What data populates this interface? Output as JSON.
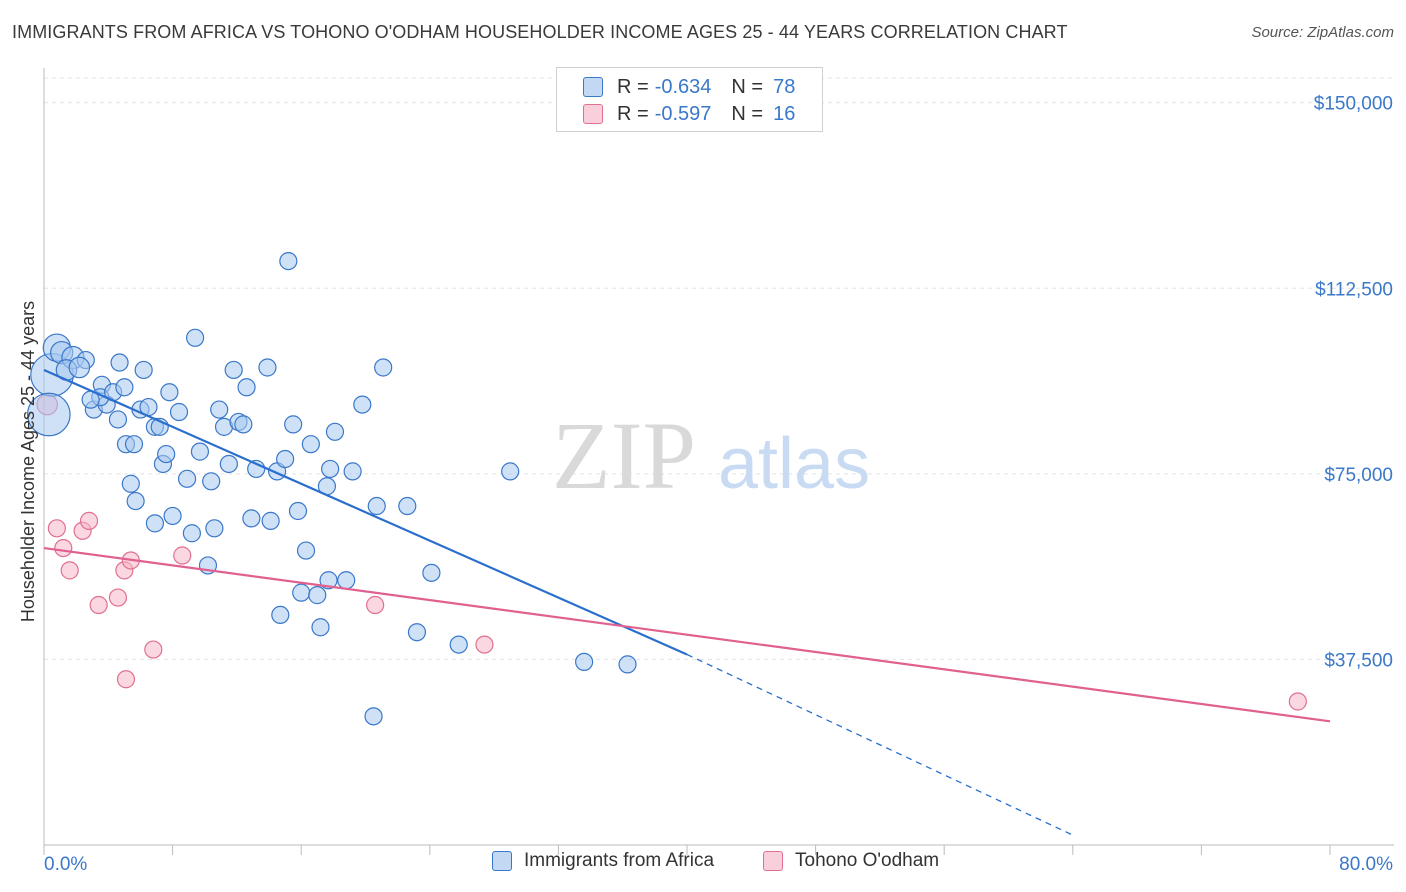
{
  "title": "IMMIGRANTS FROM AFRICA VS TOHONO O'ODHAM HOUSEHOLDER INCOME AGES 25 - 44 YEARS CORRELATION CHART",
  "source": "Source: ZipAtlas.com",
  "watermark": {
    "zip": "ZIP",
    "atlas": "atlas"
  },
  "colors": {
    "blue": "#3a78c9",
    "blue_fill": "#a8c8f0",
    "blue_line": "#2b6fce",
    "pink": "#e0708f",
    "pink_fill": "#f5b7c8",
    "pink_line": "#e0608f",
    "grid": "#e3e3e3",
    "axis_label": "#3a78c9"
  },
  "legend": {
    "rows": [
      {
        "r_label": "R = ",
        "r_value": "-0.634",
        "n_label": "N = ",
        "n_value": "78"
      },
      {
        "r_label": "R = ",
        "r_value": "-0.597",
        "n_label": "N = ",
        "n_value": "16"
      }
    ]
  },
  "bottom_legend": [
    "Immigrants from Africa",
    "Tohono O'odham"
  ],
  "chart_data": {
    "type": "scatter",
    "title": "IMMIGRANTS FROM AFRICA VS TOHONO O'ODHAM HOUSEHOLDER INCOME AGES 25 - 44 YEARS CORRELATION CHART",
    "xlabel": "",
    "ylabel": "Householder Income Ages 25 - 44 years",
    "xlim": [
      0,
      80
    ],
    "ylim": [
      0,
      155000
    ],
    "x_tick_labels": [
      "0.0%",
      "80.0%"
    ],
    "y_ticks": [
      37500,
      75000,
      112500,
      150000
    ],
    "y_tick_labels": [
      "$37,500",
      "$75,000",
      "$112,500",
      "$150,000"
    ],
    "series": [
      {
        "name": "Immigrants from Africa",
        "color": "blue",
        "points": [
          [
            0.5,
            95000,
            2.5
          ],
          [
            0.3,
            87000,
            2.5
          ],
          [
            0.8,
            100500,
            1.6
          ],
          [
            1.1,
            99500,
            1.3
          ],
          [
            1.8,
            98500,
            1.3
          ],
          [
            2.6,
            98000,
            1
          ],
          [
            3.6,
            93000,
            1
          ],
          [
            3.1,
            88000,
            1
          ],
          [
            3.9,
            89000,
            1
          ],
          [
            3.5,
            90500,
            1
          ],
          [
            4.3,
            91500,
            1
          ],
          [
            5.0,
            92500,
            1
          ],
          [
            4.6,
            86000,
            1
          ],
          [
            5.1,
            81000,
            1
          ],
          [
            5.6,
            81000,
            1
          ],
          [
            5.4,
            73000,
            1
          ],
          [
            5.7,
            69500,
            1
          ],
          [
            6.2,
            96000,
            1
          ],
          [
            6.0,
            88000,
            1
          ],
          [
            6.5,
            88500,
            1
          ],
          [
            6.9,
            84500,
            1
          ],
          [
            7.2,
            84500,
            1
          ],
          [
            7.4,
            77000,
            1
          ],
          [
            7.8,
            91500,
            1
          ],
          [
            8.0,
            66500,
            1
          ],
          [
            6.9,
            65000,
            1
          ],
          [
            8.4,
            87500,
            1
          ],
          [
            8.9,
            74000,
            1
          ],
          [
            9.2,
            63000,
            1
          ],
          [
            9.4,
            102500,
            1
          ],
          [
            9.7,
            79500,
            1
          ],
          [
            10.4,
            73500,
            1
          ],
          [
            10.2,
            56500,
            1
          ],
          [
            10.6,
            64000,
            1
          ],
          [
            10.9,
            88000,
            1
          ],
          [
            11.2,
            84500,
            1
          ],
          [
            11.5,
            77000,
            1
          ],
          [
            11.8,
            96000,
            1
          ],
          [
            12.1,
            85500,
            1
          ],
          [
            12.4,
            85000,
            1
          ],
          [
            12.6,
            92500,
            1
          ],
          [
            12.9,
            66000,
            1
          ],
          [
            13.2,
            76000,
            1
          ],
          [
            13.9,
            96500,
            1
          ],
          [
            14.1,
            65500,
            1
          ],
          [
            14.5,
            75500,
            1
          ],
          [
            15.0,
            78000,
            1
          ],
          [
            14.7,
            46500,
            1
          ],
          [
            15.2,
            118000,
            1
          ],
          [
            15.5,
            85000,
            1
          ],
          [
            15.8,
            67500,
            1
          ],
          [
            16.0,
            51000,
            1
          ],
          [
            16.3,
            59500,
            1
          ],
          [
            16.6,
            81000,
            1
          ],
          [
            17.0,
            50500,
            1
          ],
          [
            17.2,
            44000,
            1
          ],
          [
            17.6,
            72500,
            1
          ],
          [
            17.8,
            76000,
            1
          ],
          [
            17.7,
            53500,
            1
          ],
          [
            18.1,
            83500,
            1
          ],
          [
            18.8,
            53500,
            1
          ],
          [
            19.2,
            75500,
            1
          ],
          [
            19.8,
            89000,
            1
          ],
          [
            20.7,
            68500,
            1
          ],
          [
            21.1,
            96500,
            1
          ],
          [
            22.6,
            68500,
            1
          ],
          [
            23.2,
            43000,
            1
          ],
          [
            24.1,
            55000,
            1
          ],
          [
            25.8,
            40500,
            1
          ],
          [
            29.0,
            75500,
            1
          ],
          [
            33.6,
            37000,
            1
          ],
          [
            36.3,
            36500,
            1
          ],
          [
            20.5,
            26000,
            1
          ],
          [
            1.4,
            96000,
            1.2
          ],
          [
            2.2,
            96500,
            1.2
          ],
          [
            2.9,
            90000,
            1
          ],
          [
            4.7,
            97500,
            1
          ],
          [
            7.6,
            79000,
            1
          ]
        ]
      },
      {
        "name": "Tohono O'odham",
        "color": "pink",
        "points": [
          [
            0.2,
            89000,
            1.2
          ],
          [
            0.8,
            64000,
            1
          ],
          [
            1.2,
            60000,
            1
          ],
          [
            1.6,
            55500,
            1
          ],
          [
            2.4,
            63500,
            1
          ],
          [
            2.8,
            65500,
            1
          ],
          [
            3.4,
            48500,
            1
          ],
          [
            5.0,
            55500,
            1
          ],
          [
            5.4,
            57500,
            1
          ],
          [
            4.6,
            50000,
            1
          ],
          [
            5.1,
            33500,
            1
          ],
          [
            6.8,
            39500,
            1
          ],
          [
            8.6,
            58500,
            1
          ],
          [
            20.6,
            48500,
            1
          ],
          [
            27.4,
            40500,
            1
          ],
          [
            78.0,
            29000,
            1
          ]
        ]
      }
    ],
    "trend_lines": [
      {
        "series": "Immigrants from Africa",
        "x0": 0,
        "y0": 96000,
        "x1": 40,
        "y1": 38500,
        "dashed_to_x": 64,
        "dashed_to_y": 2000
      },
      {
        "series": "Tohono O'odham",
        "x0": 0,
        "y0": 60000,
        "x1": 80,
        "y1": 25000
      }
    ]
  }
}
